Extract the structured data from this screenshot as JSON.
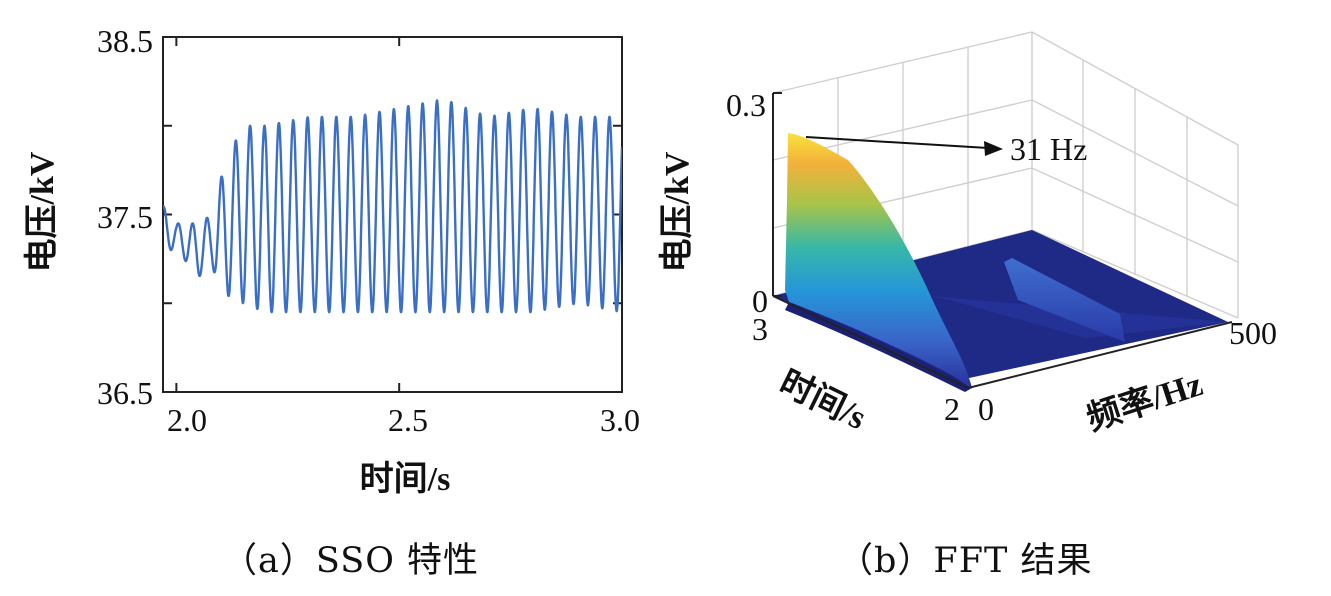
{
  "chart_data": [
    {
      "type": "line",
      "caption": "（a）SSO 特性",
      "xlabel": "时间/s",
      "ylabel": "电压/kV",
      "xlim": [
        1.97,
        3.0
      ],
      "ylim": [
        36.5,
        38.5
      ],
      "xticks": [
        "2.0",
        "2.5",
        "3.0"
      ],
      "yticks": [
        "36.5",
        "37.5",
        "38.5"
      ],
      "grid": false,
      "color": "#3b6fc6",
      "series": [
        {
          "oscillation_hz": 31,
          "points_x": [
            1.97,
            2.0,
            2.05,
            2.08,
            2.11,
            2.15,
            2.2,
            2.3,
            2.4,
            2.5,
            2.6,
            2.7,
            2.8,
            2.9,
            3.0
          ],
          "max_y": [
            37.55,
            37.45,
            37.45,
            37.5,
            37.8,
            38.0,
            38.0,
            38.05,
            38.05,
            38.1,
            38.15,
            38.05,
            38.1,
            38.05,
            38.05
          ],
          "min_y": [
            37.3,
            37.3,
            37.15,
            37.2,
            37.05,
            37.0,
            36.95,
            36.95,
            36.95,
            36.95,
            36.95,
            36.95,
            36.95,
            37.0,
            36.95
          ]
        }
      ]
    },
    {
      "type": "surface",
      "caption": "（b）FFT 结果",
      "xlabel": "时间/s",
      "ylabel": "频率/Hz",
      "zlabel": "电压/kV",
      "x_ticks": [
        "3",
        "2"
      ],
      "y_ticks": [
        "0",
        "500"
      ],
      "z_ticks": [
        "0",
        "0.3"
      ],
      "annotation": "31 Hz",
      "peak": {
        "frequency_hz": 31,
        "voltage_kv": 0.26
      },
      "grid": true,
      "colormap": "parula"
    }
  ]
}
